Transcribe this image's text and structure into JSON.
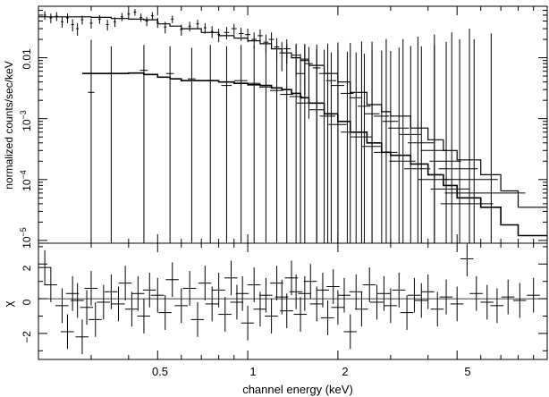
{
  "chart_data": [
    {
      "type": "line",
      "xscale": "log",
      "yscale": "log",
      "xlim": [
        0.2,
        10
      ],
      "ylim": [
        9e-06,
        0.07
      ],
      "ylabel": "normalized counts/sec/keV",
      "yticks": [
        {
          "value": 0.01,
          "label": "0.01",
          "base": "",
          "exp": ""
        },
        {
          "value": 0.001,
          "label": "",
          "base": "10",
          "exp": "−3"
        },
        {
          "value": 0.0001,
          "label": "",
          "base": "10",
          "exp": "−4"
        },
        {
          "value": 1e-05,
          "label": "",
          "base": "10",
          "exp": "−5"
        }
      ],
      "series": [
        {
          "model": [
            [
              0.2,
              0.047
            ],
            [
              0.25,
              0.047
            ],
            [
              0.3,
              0.046
            ],
            [
              0.35,
              0.044
            ],
            [
              0.4,
              0.043
            ],
            [
              0.45,
              0.042
            ],
            [
              0.5,
              0.036
            ],
            [
              0.55,
              0.033
            ],
            [
              0.6,
              0.03
            ],
            [
              0.7,
              0.026
            ],
            [
              0.8,
              0.023
            ],
            [
              0.9,
              0.021
            ],
            [
              1.0,
              0.019
            ],
            [
              1.1,
              0.017
            ],
            [
              1.2,
              0.014
            ],
            [
              1.3,
              0.012
            ],
            [
              1.4,
              0.01
            ],
            [
              1.5,
              0.009
            ],
            [
              1.6,
              0.0075
            ],
            [
              1.8,
              0.0055
            ],
            [
              2.0,
              0.004
            ],
            [
              2.2,
              0.0027
            ],
            [
              2.5,
              0.0017
            ],
            [
              2.8,
              0.0013
            ],
            [
              3.0,
              0.0011
            ],
            [
              3.5,
              0.0007
            ],
            [
              4.0,
              0.00045
            ],
            [
              4.5,
              0.0003
            ],
            [
              5.0,
              0.00021
            ],
            [
              6.0,
              0.00012
            ],
            [
              7.0,
              6.5e-05
            ],
            [
              8.0,
              3.5e-05
            ],
            [
              10.0,
              3.5e-05
            ]
          ],
          "points": [
            [
              0.21,
              0.05,
              0.01,
              0.008
            ],
            [
              0.22,
              0.045,
              0.01,
              0.008
            ],
            [
              0.23,
              0.048,
              0.01,
              0.008
            ],
            [
              0.24,
              0.039,
              0.01,
              0.008
            ],
            [
              0.25,
              0.045,
              0.01,
              0.008
            ],
            [
              0.26,
              0.035,
              0.01,
              0.008
            ],
            [
              0.27,
              0.03,
              0.01,
              0.007
            ],
            [
              0.28,
              0.042,
              0.01,
              0.007
            ],
            [
              0.3,
              0.037,
              0.01,
              0.007
            ],
            [
              0.32,
              0.043,
              0.01,
              0.007
            ],
            [
              0.34,
              0.035,
              0.01,
              0.007
            ],
            [
              0.36,
              0.039,
              0.01,
              0.007
            ],
            [
              0.38,
              0.047,
              0.01,
              0.007
            ],
            [
              0.4,
              0.052,
              0.01,
              0.007
            ],
            [
              0.42,
              0.056,
              0.01,
              0.007
            ],
            [
              0.44,
              0.046,
              0.01,
              0.007
            ],
            [
              0.46,
              0.04,
              0.01,
              0.007
            ],
            [
              0.48,
              0.049,
              0.01,
              0.007
            ],
            [
              0.5,
              0.038,
              0.01,
              0.007
            ],
            [
              0.53,
              0.032,
              0.01,
              0.007
            ],
            [
              0.56,
              0.043,
              0.01,
              0.006
            ],
            [
              0.6,
              0.029,
              0.01,
              0.006
            ],
            [
              0.64,
              0.033,
              0.01,
              0.006
            ],
            [
              0.68,
              0.036,
              0.01,
              0.006
            ],
            [
              0.72,
              0.031,
              0.01,
              0.006
            ],
            [
              0.76,
              0.027,
              0.01,
              0.006
            ],
            [
              0.8,
              0.024,
              0.01,
              0.006
            ],
            [
              0.85,
              0.026,
              0.02,
              0.006
            ],
            [
              0.9,
              0.03,
              0.02,
              0.006
            ],
            [
              0.95,
              0.025,
              0.02,
              0.006
            ],
            [
              1.0,
              0.024,
              0.02,
              0.006
            ],
            [
              1.05,
              0.02,
              0.02,
              0.006
            ],
            [
              1.1,
              0.023,
              0.02,
              0.006
            ],
            [
              1.15,
              0.018,
              0.02,
              0.006
            ],
            [
              1.2,
              0.02,
              0.02,
              0.006
            ],
            [
              1.25,
              0.015,
              0.02,
              0.006
            ],
            [
              1.3,
              0.012,
              0.02,
              0.006
            ],
            [
              1.35,
              0.014,
              0.03,
              0.006
            ],
            [
              1.45,
              0.011,
              0.03,
              0.006
            ],
            [
              1.5,
              0.0055,
              0.03,
              0.006
            ],
            [
              1.55,
              0.0095,
              0.03,
              0.007
            ],
            [
              1.6,
              0.008,
              0.03,
              0.007
            ],
            [
              1.7,
              0.0068,
              0.03,
              0.007
            ],
            [
              1.8,
              0.0055,
              0.04,
              0.008
            ],
            [
              1.9,
              0.0042,
              0.04,
              0.008
            ],
            [
              2.0,
              0.0035,
              0.05,
              0.01
            ],
            [
              2.15,
              0.0026,
              0.05,
              0.01
            ],
            [
              2.3,
              0.0022,
              0.05,
              0.01
            ],
            [
              2.45,
              0.0016,
              0.05,
              0.01
            ],
            [
              2.6,
              0.0012,
              0.06,
              0.012
            ],
            [
              2.8,
              0.0011,
              0.06,
              0.012
            ],
            [
              3.0,
              0.0009,
              0.06,
              0.012
            ],
            [
              3.2,
              0.0007,
              0.08,
              0.014
            ],
            [
              3.5,
              0.00055,
              0.08,
              0.015
            ],
            [
              3.8,
              0.0004,
              0.1,
              0.015
            ],
            [
              4.2,
              0.0003,
              0.1,
              0.016
            ],
            [
              4.6,
              0.0002,
              0.12,
              0.018
            ],
            [
              5.1,
              0.00015,
              0.15,
              0.02
            ],
            [
              5.7,
              0.0001,
              0.2,
              0.02
            ],
            [
              6.5,
              6e-05,
              0.3,
              0.025
            ]
          ]
        },
        {
          "model": [
            [
              0.28,
              0.0055
            ],
            [
              0.35,
              0.0055
            ],
            [
              0.4,
              0.0056
            ],
            [
              0.45,
              0.0053
            ],
            [
              0.5,
              0.0048
            ],
            [
              0.55,
              0.0045
            ],
            [
              0.6,
              0.0042
            ],
            [
              0.7,
              0.0042
            ],
            [
              0.8,
              0.004
            ],
            [
              0.9,
              0.0038
            ],
            [
              1.0,
              0.0036
            ],
            [
              1.1,
              0.0035
            ],
            [
              1.2,
              0.0032
            ],
            [
              1.3,
              0.003
            ],
            [
              1.4,
              0.0026
            ],
            [
              1.5,
              0.0022
            ],
            [
              1.6,
              0.0018
            ],
            [
              1.8,
              0.0012
            ],
            [
              2.0,
              0.0009
            ],
            [
              2.2,
              0.0006
            ],
            [
              2.5,
              0.0004
            ],
            [
              2.8,
              0.00028
            ],
            [
              3.0,
              0.00025
            ],
            [
              3.5,
              0.00018
            ],
            [
              4.0,
              0.00012
            ],
            [
              4.5,
              8e-05
            ],
            [
              5.0,
              5e-05
            ],
            [
              6.0,
              3.5e-05
            ],
            [
              7.0,
              1.8e-05
            ],
            [
              8.0,
              1.2e-05
            ],
            [
              10.0,
              1.2e-05
            ]
          ],
          "points": [
            [
              0.3,
              0.0027,
              0.025,
              0.017
            ],
            [
              0.35,
              0.0055,
              0.025,
              0.01
            ],
            [
              0.45,
              0.0062,
              0.03,
              0.01
            ],
            [
              0.55,
              0.0055,
              0.03,
              0.01
            ],
            [
              0.65,
              0.0045,
              0.03,
              0.01
            ],
            [
              0.75,
              0.0042,
              0.04,
              0.012
            ],
            [
              0.85,
              0.0035,
              0.04,
              0.012
            ],
            [
              0.95,
              0.0042,
              0.05,
              0.012
            ],
            [
              1.05,
              0.0038,
              0.05,
              0.012
            ],
            [
              1.15,
              0.0033,
              0.05,
              0.013
            ],
            [
              1.25,
              0.0029,
              0.05,
              0.013
            ],
            [
              1.35,
              0.0025,
              0.05,
              0.014
            ],
            [
              1.45,
              0.0023,
              0.05,
              0.014
            ],
            [
              1.55,
              0.0018,
              0.06,
              0.015
            ],
            [
              1.7,
              0.0014,
              0.06,
              0.015
            ],
            [
              1.85,
              0.0011,
              0.06,
              0.016
            ],
            [
              2.0,
              0.0008,
              0.07,
              0.017
            ],
            [
              2.2,
              0.0006,
              0.07,
              0.017
            ],
            [
              2.4,
              0.0005,
              0.08,
              0.018
            ],
            [
              2.6,
              0.00035,
              0.08,
              0.018
            ],
            [
              2.9,
              0.00028,
              0.09,
              0.02
            ],
            [
              3.3,
              0.0002,
              0.1,
              0.02
            ],
            [
              3.7,
              0.00015,
              0.1,
              0.022
            ],
            [
              4.2,
              0.0001,
              0.12,
              0.024
            ],
            [
              4.8,
              7e-05,
              0.15,
              0.026
            ],
            [
              5.5,
              4e-05,
              0.2,
              0.03
            ]
          ]
        }
      ]
    },
    {
      "type": "scatter",
      "xscale": "log",
      "xlim": [
        0.2,
        10
      ],
      "ylim": [
        -3.5,
        3.2
      ],
      "xlabel": "channel energy (keV)",
      "ylabel": "χ",
      "yticks": [
        {
          "value": 2,
          "label": "2"
        },
        {
          "value": 0,
          "label": "0"
        },
        {
          "value": -2,
          "label": "−2"
        }
      ],
      "xticks": [
        {
          "value": 0.5,
          "label": "0.5"
        },
        {
          "value": 1,
          "label": "1"
        },
        {
          "value": 2,
          "label": "2"
        },
        {
          "value": 5,
          "label": "5"
        }
      ],
      "residuals": [
        [
          0.21,
          1.8
        ],
        [
          0.22,
          0.8
        ],
        [
          0.24,
          -0.4
        ],
        [
          0.25,
          -1.9
        ],
        [
          0.26,
          0.3
        ],
        [
          0.27,
          -0.1
        ],
        [
          0.28,
          -2.2
        ],
        [
          0.29,
          -0.5
        ],
        [
          0.3,
          0.6
        ],
        [
          0.31,
          -1.2
        ],
        [
          0.33,
          -0.2
        ],
        [
          0.35,
          0.4
        ],
        [
          0.37,
          -0.3
        ],
        [
          0.39,
          0.9
        ],
        [
          0.41,
          -0.6
        ],
        [
          0.43,
          0.3
        ],
        [
          0.45,
          -1.0
        ],
        [
          0.47,
          0.5
        ],
        [
          0.5,
          0.2
        ],
        [
          0.53,
          -0.8
        ],
        [
          0.56,
          1.1
        ],
        [
          0.6,
          -0.4
        ],
        [
          0.64,
          0.6
        ],
        [
          0.68,
          -1.2
        ],
        [
          0.72,
          0.9
        ],
        [
          0.76,
          -0.3
        ],
        [
          0.8,
          0.5
        ],
        [
          0.84,
          -0.9
        ],
        [
          0.88,
          1.2
        ],
        [
          0.92,
          -0.2
        ],
        [
          0.96,
          0.3
        ],
        [
          1.0,
          -1.4
        ],
        [
          1.05,
          0.8
        ],
        [
          1.1,
          -0.6
        ],
        [
          1.15,
          0.2
        ],
        [
          1.2,
          -1.0
        ],
        [
          1.25,
          0.9
        ],
        [
          1.3,
          0.1
        ],
        [
          1.35,
          -0.7
        ],
        [
          1.4,
          1.2
        ],
        [
          1.45,
          0.4
        ],
        [
          1.5,
          -0.9
        ],
        [
          1.55,
          0.3
        ],
        [
          1.62,
          1.0
        ],
        [
          1.7,
          -0.3
        ],
        [
          1.78,
          0.5
        ],
        [
          1.85,
          -1.1
        ],
        [
          1.93,
          0.7
        ],
        [
          2.0,
          -0.5
        ],
        [
          2.1,
          0.2
        ],
        [
          2.2,
          -1.9
        ],
        [
          2.3,
          0.4
        ],
        [
          2.4,
          -0.6
        ],
        [
          2.55,
          0.8
        ],
        [
          2.7,
          -0.2
        ],
        [
          2.85,
          0.3
        ],
        [
          3.0,
          -0.4
        ],
        [
          3.2,
          0.5
        ],
        [
          3.4,
          -0.8
        ],
        [
          3.6,
          0.2
        ],
        [
          3.8,
          -0.1
        ],
        [
          4.0,
          0.4
        ],
        [
          4.3,
          -0.6
        ],
        [
          4.6,
          0.1
        ],
        [
          5.0,
          -0.3
        ],
        [
          5.4,
          2.3
        ],
        [
          5.8,
          0.3
        ],
        [
          6.3,
          -0.2
        ],
        [
          6.8,
          -0.4
        ],
        [
          7.4,
          0.1
        ],
        [
          8.1,
          -0.1
        ],
        [
          9.0,
          0.2
        ]
      ]
    }
  ]
}
